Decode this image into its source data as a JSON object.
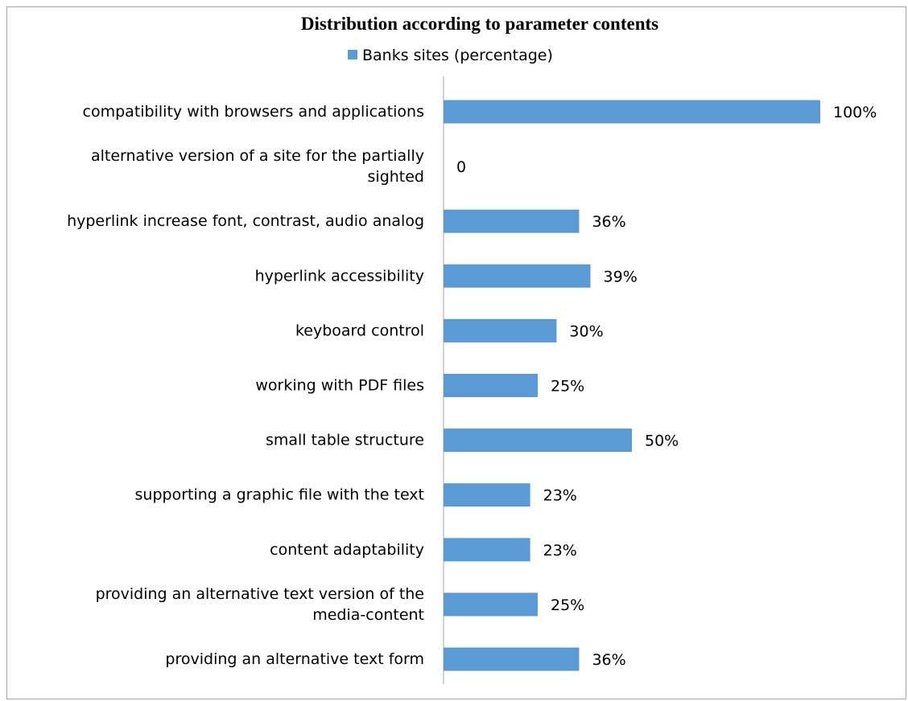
{
  "chart_data": {
    "type": "bar",
    "orientation": "horizontal",
    "title": "Distribution according to parameter contents",
    "legend": {
      "position": "top",
      "entries": [
        "Banks sites (percentage)"
      ]
    },
    "categories": [
      "compatibility with browsers and applications",
      "alternative version of a site for the partially sighted",
      "hyperlink increase font, contrast, audio analog",
      "hyperlink accessibility",
      "keyboard control",
      "working with PDF files",
      "small table structure",
      "supporting a graphic file with the text",
      "content adaptability",
      "providing an alternative text version of the media-content",
      "providing an alternative text form"
    ],
    "category_lines": [
      [
        "compatibility with browsers and applications"
      ],
      [
        "alternative version of a site for the partially",
        "sighted"
      ],
      [
        "hyperlink increase font, contrast, audio analog"
      ],
      [
        "hyperlink accessibility"
      ],
      [
        "keyboard control"
      ],
      [
        "working with PDF files"
      ],
      [
        "small table structure"
      ],
      [
        "supporting a graphic file with the text"
      ],
      [
        "content adaptability"
      ],
      [
        "providing an alternative text version of the",
        "media-content"
      ],
      [
        "providing an alternative text form"
      ]
    ],
    "series": [
      {
        "name": "Banks sites (percentage)",
        "color": "#5b9bd5",
        "values": [
          100,
          0,
          36,
          39,
          30,
          25,
          50,
          23,
          23,
          25,
          36
        ],
        "labels": [
          "100%",
          "0",
          "36%",
          "39%",
          "30%",
          "25%",
          "50%",
          "23%",
          "23%",
          "25%",
          "36%"
        ]
      }
    ],
    "xlim": [
      0,
      100
    ],
    "grid": false,
    "xlabel": "",
    "ylabel": ""
  },
  "colors": {
    "bar": "#5b9bd5",
    "axis": "#a6a6a6",
    "border": "#a6a6a6",
    "text": "#000000"
  }
}
